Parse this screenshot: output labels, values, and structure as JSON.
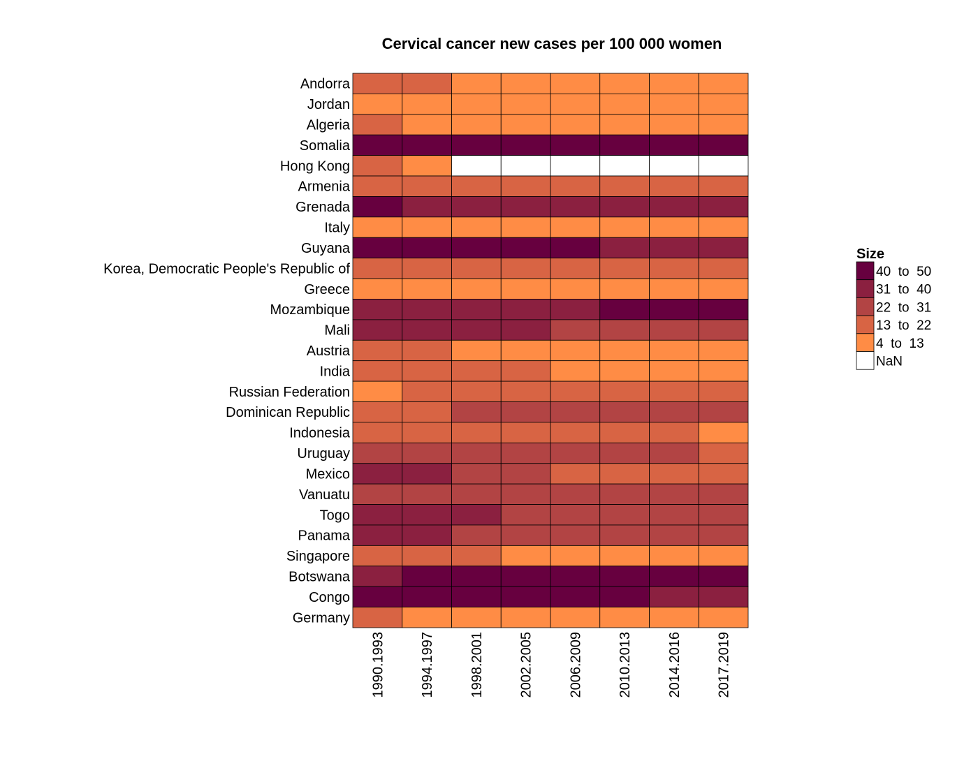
{
  "chart_data": {
    "type": "heatmap",
    "title": "Cervical cancer new cases per 100 000 women",
    "x": [
      "1990.1993",
      "1994.1997",
      "1998.2001",
      "2002.2005",
      "2006.2009",
      "2010.2013",
      "2014.2016",
      "2017.2019"
    ],
    "y": [
      "Andorra",
      "Jordan",
      "Algeria",
      "Somalia",
      "Hong Kong",
      "Armenia",
      "Grenada",
      "Italy",
      "Guyana",
      "Korea, Democratic People's Republic of",
      "Greece",
      "Mozambique",
      "Mali",
      "Austria",
      "India",
      "Russian Federation",
      "Dominican Republic",
      "Indonesia",
      "Uruguay",
      "Mexico",
      "Vanuatu",
      "Togo",
      "Panama",
      "Singapore",
      "Botswana",
      "Congo",
      "Germany"
    ],
    "values": [
      [
        17,
        17,
        9,
        9,
        9,
        9,
        9,
        9
      ],
      [
        9,
        9,
        9,
        9,
        9,
        9,
        9,
        9
      ],
      [
        17,
        9,
        9,
        9,
        9,
        9,
        9,
        9
      ],
      [
        45,
        45,
        45,
        45,
        45,
        45,
        45,
        45
      ],
      [
        17,
        9,
        null,
        null,
        null,
        null,
        null,
        null
      ],
      [
        17,
        17,
        17,
        17,
        17,
        17,
        17,
        17
      ],
      [
        45,
        35,
        35,
        35,
        35,
        35,
        35,
        35
      ],
      [
        9,
        9,
        9,
        9,
        9,
        9,
        9,
        9
      ],
      [
        45,
        45,
        45,
        45,
        45,
        35,
        35,
        35
      ],
      [
        17,
        17,
        17,
        17,
        17,
        17,
        17,
        17
      ],
      [
        9,
        9,
        9,
        9,
        9,
        9,
        9,
        9
      ],
      [
        35,
        35,
        35,
        35,
        35,
        45,
        45,
        45
      ],
      [
        35,
        35,
        35,
        35,
        26,
        26,
        26,
        26
      ],
      [
        17,
        17,
        9,
        9,
        9,
        9,
        9,
        9
      ],
      [
        17,
        17,
        17,
        17,
        9,
        9,
        9,
        9
      ],
      [
        9,
        17,
        17,
        17,
        17,
        17,
        17,
        17
      ],
      [
        17,
        17,
        26,
        26,
        26,
        26,
        26,
        26
      ],
      [
        17,
        17,
        17,
        17,
        17,
        17,
        17,
        9
      ],
      [
        26,
        26,
        26,
        26,
        26,
        26,
        26,
        17
      ],
      [
        35,
        35,
        26,
        26,
        17,
        17,
        17,
        17
      ],
      [
        26,
        26,
        26,
        26,
        26,
        26,
        26,
        26
      ],
      [
        35,
        35,
        35,
        26,
        26,
        26,
        26,
        26
      ],
      [
        35,
        35,
        26,
        26,
        26,
        26,
        26,
        26
      ],
      [
        17,
        17,
        17,
        9,
        9,
        9,
        9,
        9
      ],
      [
        35,
        45,
        45,
        45,
        45,
        45,
        45,
        45
      ],
      [
        45,
        45,
        45,
        45,
        45,
        45,
        35,
        35
      ],
      [
        17,
        9,
        9,
        9,
        9,
        9,
        9,
        9
      ]
    ],
    "bins": [
      4,
      13,
      22,
      31,
      40,
      50
    ],
    "legend_title": "Size",
    "legend": [
      {
        "label": "40  to  50",
        "color": "#67003f"
      },
      {
        "label": "31  to  40",
        "color": "#8b2040"
      },
      {
        "label": "22  to  31",
        "color": "#b24444"
      },
      {
        "label": "13  to  22",
        "color": "#d86444"
      },
      {
        "label": "4  to  13",
        "color": "#ff8c45"
      },
      {
        "label": "NaN",
        "color": "#ffffff"
      }
    ]
  }
}
